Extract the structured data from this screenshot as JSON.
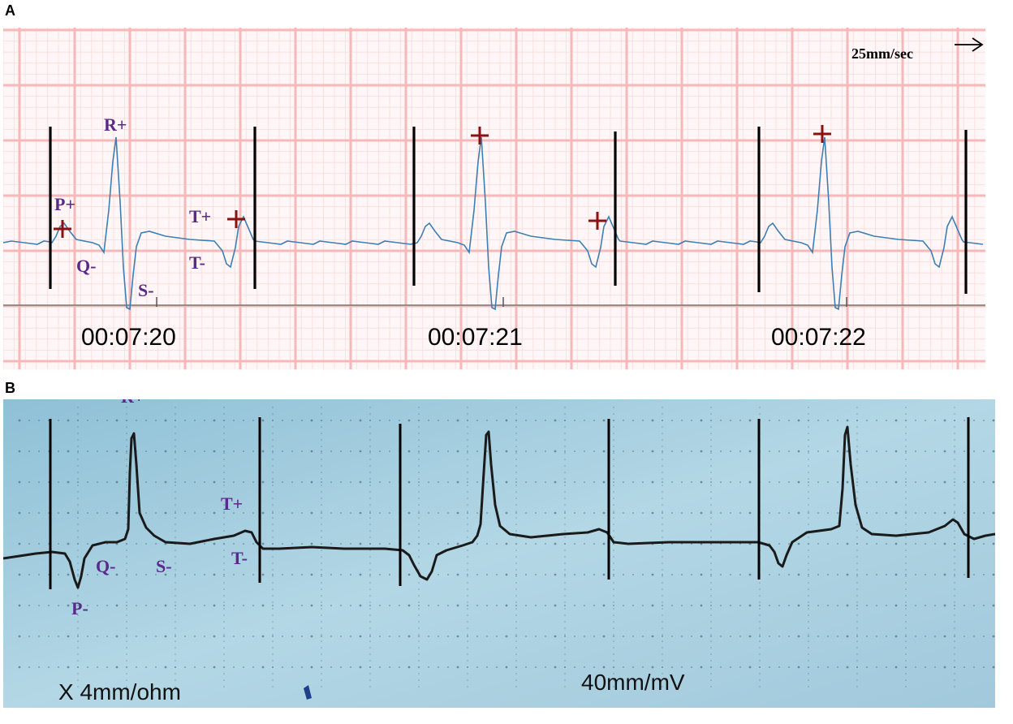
{
  "panel_a": {
    "letter": "A",
    "speed_label": "25mm/sec",
    "wave_labels": {
      "p_plus": "P+",
      "r_plus": "R+",
      "q_minus": "Q-",
      "s_minus": "S-",
      "t_plus": "T+",
      "t_minus": "T-"
    },
    "timestamps": [
      "00:07:20",
      "00:07:21",
      "00:07:22"
    ],
    "marker_color": "#8b1010",
    "trace_color": "#3d7fb5",
    "grid_color": "#f6b8b8"
  },
  "panel_b": {
    "letter": "B",
    "wave_labels": {
      "r_plus": "R+",
      "t_plus": "T+",
      "t_minus": "T-",
      "q_minus": "Q-",
      "s_minus": "S-",
      "p_minus": "P-"
    },
    "left_caption": "X 4mm/ohm",
    "right_caption": "40mm/mV",
    "background_color": "#a9d0e0",
    "trace_color": "#1a1a1a"
  }
}
